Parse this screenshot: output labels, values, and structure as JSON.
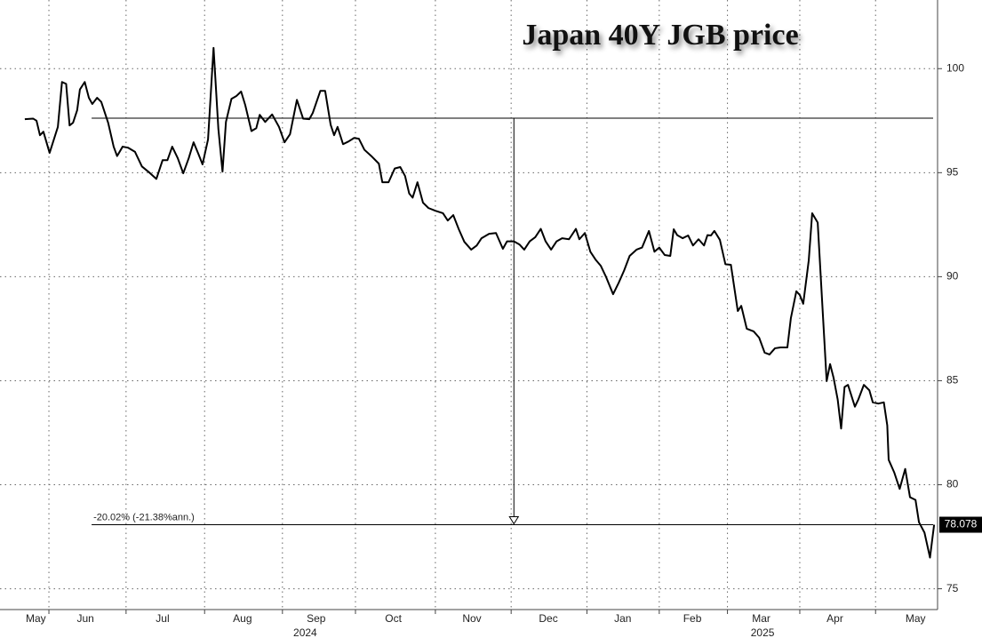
{
  "chart_data": {
    "type": "line",
    "title": "Japan 40Y JGB price",
    "color": "#000000",
    "x": [
      0.65,
      0.77,
      0.82,
      0.87,
      0.92,
      1.01,
      1.13,
      1.19,
      1.25,
      1.3,
      1.35,
      1.41,
      1.45,
      1.52,
      1.58,
      1.63,
      1.7,
      1.76,
      1.86,
      1.94,
      1.99,
      2.07,
      2.15,
      2.25,
      2.35,
      2.46,
      2.56,
      2.65,
      2.72,
      2.79,
      2.87,
      2.95,
      3.03,
      3.1,
      3.17,
      3.23,
      3.31,
      3.39,
      3.46,
      3.52,
      3.57,
      3.65,
      3.72,
      3.79,
      3.85,
      3.94,
      4.01,
      4.06,
      4.14,
      4.24,
      4.34,
      4.42,
      4.5,
      4.6,
      4.69,
      4.78,
      4.83,
      4.94,
      5.01,
      5.09,
      5.14,
      5.19,
      5.27,
      5.35,
      5.43,
      5.5,
      5.58,
      5.68,
      5.79,
      5.84,
      5.93,
      6.02,
      6.1,
      6.17,
      6.23,
      6.28,
      6.35,
      6.43,
      6.51,
      6.61,
      6.72,
      6.79,
      6.87,
      6.95,
      7.03,
      7.13,
      7.21,
      7.28,
      7.39,
      7.49,
      7.59,
      7.65,
      7.75,
      7.83,
      7.9,
      7.98,
      8.06,
      8.14,
      8.21,
      8.29,
      8.37,
      8.45,
      8.55,
      8.65,
      8.7,
      8.78,
      8.86,
      8.94,
      9.01,
      9.09,
      9.19,
      9.27,
      9.35,
      9.43,
      9.53,
      9.61,
      9.71,
      9.79,
      9.86,
      9.94,
      10.02,
      10.07,
      10.12,
      10.2,
      10.28,
      10.35,
      10.43,
      10.51,
      10.56,
      10.61,
      10.66,
      10.74,
      10.82,
      10.9,
      11.0,
      11.05,
      11.13,
      11.23,
      11.31,
      11.39,
      11.46,
      11.54,
      11.62,
      11.72,
      11.77,
      11.85,
      11.9,
      11.95,
      12.03,
      12.08,
      12.16,
      12.24,
      12.29,
      12.34,
      12.39,
      12.45,
      12.5,
      12.55,
      12.6,
      12.7,
      12.75,
      12.83,
      12.91,
      12.96,
      13.04,
      13.12,
      13.17,
      13.19,
      13.27,
      13.35,
      13.43,
      13.5,
      13.58,
      13.63,
      13.71,
      13.79,
      13.85
    ],
    "values": [
      97.57,
      97.6,
      97.5,
      96.8,
      96.97,
      95.95,
      97.2,
      99.36,
      99.27,
      97.27,
      97.4,
      98.0,
      99.0,
      99.36,
      98.6,
      98.3,
      98.6,
      98.4,
      97.4,
      96.25,
      95.8,
      96.25,
      96.2,
      96.0,
      95.3,
      95.0,
      94.7,
      95.6,
      95.6,
      96.25,
      95.7,
      94.97,
      95.7,
      96.46,
      95.9,
      95.4,
      96.6,
      101.0,
      97.1,
      95.05,
      97.44,
      98.55,
      98.68,
      98.9,
      98.25,
      97.0,
      97.14,
      97.78,
      97.44,
      97.8,
      97.2,
      96.46,
      96.85,
      98.5,
      97.6,
      97.57,
      97.87,
      98.93,
      98.93,
      97.3,
      96.8,
      97.2,
      96.37,
      96.5,
      96.67,
      96.63,
      96.1,
      95.8,
      95.43,
      94.54,
      94.54,
      95.2,
      95.27,
      94.84,
      94.0,
      93.8,
      94.54,
      93.56,
      93.3,
      93.17,
      93.05,
      92.7,
      92.96,
      92.28,
      91.68,
      91.3,
      91.5,
      91.85,
      92.06,
      92.1,
      91.34,
      91.7,
      91.7,
      91.55,
      91.3,
      91.7,
      91.9,
      92.3,
      91.7,
      91.3,
      91.7,
      91.85,
      91.8,
      92.3,
      91.8,
      92.1,
      91.2,
      90.8,
      90.53,
      89.97,
      89.16,
      89.7,
      90.3,
      91.0,
      91.3,
      91.4,
      92.2,
      91.2,
      91.4,
      91.04,
      91.0,
      92.28,
      92.0,
      91.85,
      91.98,
      91.5,
      91.8,
      91.5,
      92.0,
      91.98,
      92.2,
      91.77,
      90.6,
      90.57,
      88.35,
      88.6,
      87.5,
      87.37,
      87.07,
      86.35,
      86.26,
      86.56,
      86.6,
      86.6,
      88.0,
      89.3,
      89.12,
      88.7,
      90.78,
      93.05,
      92.6,
      87.9,
      84.98,
      85.8,
      85.15,
      84.1,
      82.7,
      84.7,
      84.8,
      83.75,
      84.1,
      84.8,
      84.54,
      83.96,
      83.9,
      83.96,
      82.85,
      81.2,
      80.6,
      79.8,
      80.76,
      79.4,
      79.27,
      78.2,
      77.7,
      76.5,
      78.078
    ],
    "xlim": [
      0.29,
      13.9
    ],
    "ylim": [
      74,
      103.3
    ],
    "yticks": [
      75,
      80,
      85,
      90,
      95,
      100
    ],
    "xticks": [
      {
        "value": 0.81,
        "label": "May"
      },
      {
        "value": 1.53,
        "label": "Jun"
      },
      {
        "value": 2.65,
        "label": "Jul"
      },
      {
        "value": 3.81,
        "label": "Aug"
      },
      {
        "value": 4.88,
        "label": "Sep"
      },
      {
        "value": 6.0,
        "label": "Oct"
      },
      {
        "value": 7.14,
        "label": "Nov"
      },
      {
        "value": 8.25,
        "label": "Dec"
      },
      {
        "value": 9.33,
        "label": "Jan"
      },
      {
        "value": 10.34,
        "label": "Feb"
      },
      {
        "value": 11.34,
        "label": "Mar"
      },
      {
        "value": 12.41,
        "label": "Apr"
      },
      {
        "value": 13.58,
        "label": "May"
      }
    ],
    "year_ticks": [
      {
        "value": 4.72,
        "label": "2024"
      },
      {
        "value": 11.36,
        "label": "2025"
      }
    ],
    "xgrid": [
      1.0,
      2.12,
      3.26,
      4.39,
      5.45,
      6.61,
      7.71,
      8.81,
      9.86,
      10.85,
      11.9,
      13.0
    ],
    "grid": true,
    "annotation": {
      "text": "-20.02% (-21.38%ann.)",
      "from": 97.62,
      "x_start": 1.62,
      "x_arrow": 7.75
    }
  }
}
